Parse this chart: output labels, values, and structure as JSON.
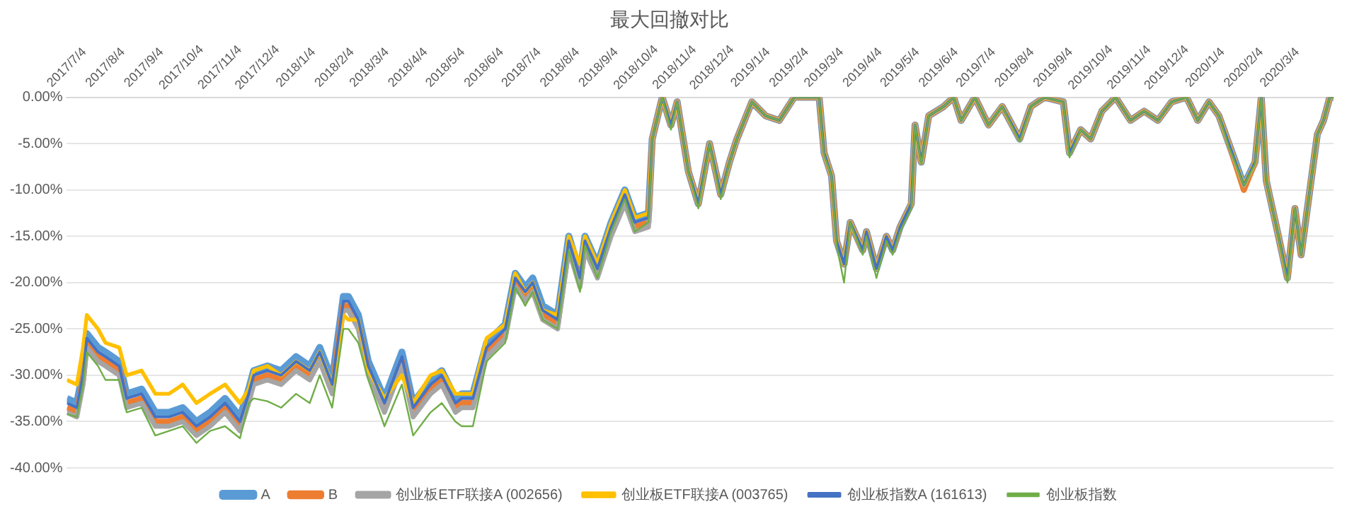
{
  "chart_data": {
    "type": "line",
    "title": "最大回撤对比",
    "x": [
      "2017-07-04",
      "2017-07-12",
      "2017-07-17",
      "2017-07-20",
      "2017-07-29",
      "2017-08-04",
      "2017-08-15",
      "2017-08-21",
      "2017-09-02",
      "2017-09-13",
      "2017-09-24",
      "2017-10-05",
      "2017-10-16",
      "2017-10-27",
      "2017-11-08",
      "2017-11-20",
      "2017-11-27",
      "2017-12-01",
      "2017-12-12",
      "2017-12-23",
      "2018-01-04",
      "2018-01-15",
      "2018-01-23",
      "2018-02-02",
      "2018-02-11",
      "2018-02-15",
      "2018-02-23",
      "2018-03-03",
      "2018-03-16",
      "2018-03-30",
      "2018-04-08",
      "2018-04-22",
      "2018-05-01",
      "2018-05-12",
      "2018-05-17",
      "2018-05-26",
      "2018-06-06",
      "2018-06-21",
      "2018-06-29",
      "2018-07-07",
      "2018-07-13",
      "2018-07-21",
      "2018-08-02",
      "2018-08-11",
      "2018-08-20",
      "2018-08-24",
      "2018-09-03",
      "2018-09-14",
      "2018-09-25",
      "2018-10-03",
      "2018-10-14",
      "2018-10-17",
      "2018-10-25",
      "2018-11-01",
      "2018-11-06",
      "2018-11-15",
      "2018-11-23",
      "2018-12-02",
      "2018-12-11",
      "2018-12-18",
      "2018-12-24",
      "2019-01-05",
      "2019-01-16",
      "2019-01-27",
      "2019-02-08",
      "2019-02-28",
      "2019-03-04",
      "2019-03-10",
      "2019-03-14",
      "2019-03-20",
      "2019-03-25",
      "2019-04-04",
      "2019-04-07",
      "2019-04-15",
      "2019-04-23",
      "2019-04-28",
      "2019-05-04",
      "2019-05-13",
      "2019-05-16",
      "2019-05-21",
      "2019-05-27",
      "2019-06-08",
      "2019-06-16",
      "2019-06-22",
      "2019-07-03",
      "2019-07-14",
      "2019-07-25",
      "2019-08-08",
      "2019-08-17",
      "2019-08-28",
      "2019-09-12",
      "2019-09-17",
      "2019-09-26",
      "2019-10-04",
      "2019-10-13",
      "2019-10-24",
      "2019-11-05",
      "2019-11-16",
      "2019-11-27",
      "2019-12-08",
      "2019-12-20",
      "2019-12-29",
      "2020-01-07",
      "2020-01-15",
      "2020-01-23",
      "2020-02-04",
      "2020-02-13",
      "2020-02-18",
      "2020-02-22",
      "2020-03-02",
      "2020-03-10",
      "2020-03-16",
      "2020-03-21",
      "2020-03-27",
      "2020-04-03",
      "2020-04-08",
      "2020-04-13",
      "2020-04-16"
    ],
    "series": [
      {
        "name": "A",
        "color": "#5b9bd5",
        "values": [
          -32.5,
          -33,
          -29.5,
          -25.5,
          -27,
          -27.5,
          -28.5,
          -32,
          -31.5,
          -34,
          -34,
          -33.5,
          -35,
          -34,
          -32.5,
          -34.5,
          -31.5,
          -29.5,
          -29,
          -29.5,
          -28,
          -29,
          -27,
          -30.5,
          -21.5,
          -21.5,
          -23.5,
          -28.5,
          -32.5,
          -27.5,
          -33,
          -30.5,
          -29.5,
          -32.5,
          -32,
          -32,
          -26.5,
          -24.5,
          -19,
          -20.5,
          -19.5,
          -22.5,
          -23.5,
          -15,
          -19,
          -15,
          -18,
          -13.5,
          -10,
          -13,
          -12.5,
          -4.5,
          0,
          -3,
          -0.5,
          -8,
          -11.5,
          -5,
          -10.5,
          -7,
          -4.5,
          -0.5,
          -2,
          -2.5,
          0,
          0,
          -6,
          -8.5,
          -15.5,
          -18,
          -13.5,
          -16.5,
          -14.5,
          -18.5,
          -15,
          -16.5,
          -14,
          -11.5,
          -3,
          -7,
          -2,
          -1,
          0,
          -2.5,
          0,
          -3,
          -1,
          -4.5,
          -1,
          0,
          -0.5,
          -6,
          -3.5,
          -4.5,
          -1.5,
          0,
          -2.5,
          -1.5,
          -2.5,
          -0.5,
          0,
          -2.5,
          -0.5,
          -2,
          -5,
          -9.5,
          -7,
          0,
          -9,
          -14.5,
          -19.5,
          -12,
          -17,
          -11,
          -4,
          -2.5,
          0,
          0
        ]
      },
      {
        "name": "B",
        "color": "#ed7d31",
        "values": [
          -33.5,
          -34,
          -30.5,
          -26.5,
          -28,
          -28.5,
          -29.5,
          -33,
          -32.5,
          -35,
          -35,
          -34.5,
          -36,
          -35,
          -33.5,
          -35.5,
          -32.5,
          -30.5,
          -30,
          -30.5,
          -29,
          -30,
          -28,
          -31.5,
          -22.5,
          -22.5,
          -24.5,
          -29.5,
          -33.5,
          -28.5,
          -34,
          -31.5,
          -30.5,
          -33.5,
          -33,
          -33,
          -27.5,
          -25.5,
          -20,
          -21.5,
          -20.5,
          -23.5,
          -24.5,
          -16,
          -20,
          -16,
          -19,
          -14.5,
          -11,
          -14,
          -13.5,
          -4.5,
          0,
          -3,
          -0.5,
          -8,
          -11.5,
          -5,
          -10.5,
          -7,
          -4.5,
          -0.5,
          -2,
          -2.5,
          0,
          0,
          -6,
          -8.5,
          -15.5,
          -18,
          -13.5,
          -16.5,
          -14.5,
          -18.5,
          -15,
          -16.5,
          -14,
          -11.5,
          -3,
          -7,
          -2,
          -1,
          0,
          -2.5,
          0,
          -3,
          -1,
          -4.5,
          -1,
          0,
          -0.5,
          -6,
          -3.5,
          -4.5,
          -1.5,
          0,
          -2.5,
          -1.5,
          -2.5,
          -0.5,
          0,
          -2.5,
          -0.5,
          -2,
          -5,
          -10,
          -7,
          0,
          -9,
          -14.5,
          -19.5,
          -12,
          -17,
          -11,
          -4,
          -2.5,
          0,
          0
        ]
      },
      {
        "name": "创业板ETF联接A (002656)",
        "color": "#a5a5a5",
        "values": [
          -34,
          -34.5,
          -31,
          -27,
          -28.5,
          -29,
          -30,
          -33.5,
          -33,
          -35.5,
          -35.5,
          -35,
          -36.5,
          -35.5,
          -34,
          -36,
          -33,
          -31,
          -30.5,
          -31,
          -29.5,
          -30.5,
          -28.5,
          -32,
          -23,
          -23,
          -25,
          -30,
          -34,
          -29,
          -34.5,
          -32,
          -31,
          -34,
          -33.5,
          -33.5,
          -28,
          -26,
          -20.5,
          -22,
          -21,
          -24,
          -25,
          -16.5,
          -20.5,
          -16.5,
          -19.5,
          -15,
          -11.5,
          -14.5,
          -14,
          -4.5,
          0,
          -3,
          -0.5,
          -8,
          -11.5,
          -5,
          -10.5,
          -7,
          -4.5,
          -0.5,
          -2,
          -2.5,
          0,
          0,
          -6,
          -8.5,
          -15.5,
          -18,
          -13.5,
          -16.5,
          -14.5,
          -18.5,
          -15,
          -16.5,
          -14,
          -11.5,
          -3,
          -7,
          -2,
          -1,
          0,
          -2.5,
          0,
          -3,
          -1,
          -4.5,
          -1,
          0,
          -0.5,
          -6,
          -3.5,
          -4.5,
          -1.5,
          0,
          -2.5,
          -1.5,
          -2.5,
          -0.5,
          0,
          -2.5,
          -0.5,
          -2,
          -5,
          -9.5,
          -7,
          0,
          -9,
          -14.5,
          -19.5,
          -12,
          -17,
          -11,
          -4,
          -2.5,
          0,
          0
        ]
      },
      {
        "name": "创业板ETF联接A (003765)",
        "color": "#ffc000",
        "values": [
          -30.5,
          -31,
          -27,
          -23.5,
          -25,
          -26.5,
          -27,
          -30,
          -29.5,
          -32,
          -32,
          -31,
          -33,
          -32,
          -31,
          -33,
          -31.5,
          -29.5,
          -29,
          -30,
          -28.5,
          -29.5,
          -27.5,
          -31,
          -23.5,
          -24,
          -24,
          -29.5,
          -32.5,
          -30,
          -33,
          -30,
          -29.5,
          -32,
          -32,
          -32,
          -26,
          -24.5,
          -19,
          -21,
          -20,
          -23,
          -23.5,
          -15,
          -18,
          -15,
          -18,
          -13.5,
          -10,
          -13,
          -12.5,
          -4.5,
          0,
          -3,
          -0.5,
          -8,
          -11.5,
          -5,
          -10.5,
          -7,
          -4.5,
          -0.5,
          -2,
          -2.5,
          0,
          0,
          -6,
          -8.5,
          -15.5,
          -18,
          -13.5,
          -16.5,
          -14.5,
          -18.5,
          -15,
          -16.5,
          -14,
          -11.5,
          -3,
          -7,
          -2,
          -1,
          0,
          -2.5,
          0,
          -3,
          -1,
          -4.5,
          -1,
          0,
          -0.5,
          -6,
          -3.5,
          -4.5,
          -1.5,
          0,
          -2.5,
          -1.5,
          -2.5,
          -0.5,
          0,
          -2.5,
          -0.5,
          -2,
          -5,
          -9.5,
          -7,
          0,
          -9,
          -14.5,
          -19.5,
          -12,
          -17,
          -11,
          -4,
          -2.5,
          0,
          0
        ]
      },
      {
        "name": "创业板指数A (161613)",
        "color": "#4472c4",
        "values": [
          -33,
          -33.5,
          -30,
          -26,
          -27.5,
          -28,
          -29,
          -32.5,
          -32,
          -34.5,
          -34.5,
          -34,
          -35.5,
          -34.5,
          -33,
          -35,
          -32,
          -30,
          -29.5,
          -30,
          -28.5,
          -29.5,
          -27.5,
          -31,
          -22,
          -22,
          -24,
          -29,
          -33,
          -28,
          -33.5,
          -31,
          -30,
          -33,
          -32.5,
          -32.5,
          -27,
          -25,
          -19.5,
          -21,
          -20,
          -23,
          -24,
          -15.5,
          -19.5,
          -15.5,
          -18.5,
          -14,
          -10.5,
          -13.5,
          -13,
          -4.5,
          0,
          -3,
          -0.5,
          -8,
          -11.5,
          -5,
          -10.5,
          -7,
          -4.5,
          -0.5,
          -2,
          -2.5,
          0,
          0,
          -6,
          -8.5,
          -15.5,
          -18,
          -13.5,
          -16.5,
          -14.5,
          -18.5,
          -15,
          -16.5,
          -14,
          -11.5,
          -3,
          -7,
          -2,
          -1,
          0,
          -2.5,
          0,
          -3,
          -1,
          -4.5,
          -1,
          0,
          -0.5,
          -6,
          -3.5,
          -4.5,
          -1.5,
          0,
          -2.5,
          -1.5,
          -2.5,
          -0.5,
          0,
          -2.5,
          -0.5,
          -2,
          -5,
          -9.5,
          -7,
          0,
          -9,
          -14.5,
          -19.5,
          -12,
          -17,
          -11,
          -4,
          -2.5,
          0,
          0
        ]
      },
      {
        "name": "创业板指数",
        "color": "#70ad47",
        "values": [
          -34.2,
          -34.5,
          -31,
          -27.5,
          -29,
          -30.5,
          -30.5,
          -34,
          -33.5,
          -36.5,
          -36,
          -35.5,
          -37.3,
          -36,
          -35.5,
          -36.8,
          -33,
          -32.5,
          -32.8,
          -33.5,
          -32,
          -33,
          -30,
          -33.5,
          -25,
          -25,
          -26.5,
          -30.5,
          -35.5,
          -31,
          -36.5,
          -34,
          -33,
          -35,
          -35.5,
          -35.5,
          -28.5,
          -26.5,
          -20.5,
          -22.5,
          -21,
          -24,
          -25,
          -16.5,
          -21,
          -16,
          -19.5,
          -14.5,
          -11,
          -14.5,
          -13.5,
          -4.5,
          0,
          -3.5,
          -0.5,
          -8,
          -12,
          -5,
          -11,
          -7,
          -4.5,
          -0.5,
          -2,
          -2.5,
          0,
          0,
          -6.3,
          -8.5,
          -16,
          -20,
          -13.5,
          -17,
          -15,
          -19.5,
          -15.5,
          -17,
          -14.5,
          -12,
          -3,
          -7.2,
          -2,
          -1,
          0,
          -2.5,
          0,
          -3,
          -1,
          -4.8,
          -1,
          0,
          -0.5,
          -6.5,
          -3.5,
          -4.5,
          -1.5,
          0,
          -2.5,
          -1.5,
          -2.5,
          -0.5,
          0,
          -2.5,
          -0.5,
          -2,
          -5.4,
          -9.5,
          -7.2,
          0,
          -9,
          -14.5,
          -20,
          -12,
          -17,
          -11,
          -4,
          -2.5,
          0,
          0
        ]
      }
    ],
    "xlim": [
      "2017-07-04",
      "2020-04-16"
    ],
    "xticks": [
      {
        "value": "2017-07-04",
        "label": "2017/7/4"
      },
      {
        "value": "2017-08-04",
        "label": "2017/8/4"
      },
      {
        "value": "2017-09-04",
        "label": "2017/9/4"
      },
      {
        "value": "2017-10-04",
        "label": "2017/10/4"
      },
      {
        "value": "2017-11-04",
        "label": "2017/11/4"
      },
      {
        "value": "2017-12-04",
        "label": "2017/12/4"
      },
      {
        "value": "2018-01-04",
        "label": "2018/1/4"
      },
      {
        "value": "2018-02-04",
        "label": "2018/2/4"
      },
      {
        "value": "2018-03-04",
        "label": "2018/3/4"
      },
      {
        "value": "2018-04-04",
        "label": "2018/4/4"
      },
      {
        "value": "2018-05-04",
        "label": "2018/5/4"
      },
      {
        "value": "2018-06-04",
        "label": "2018/6/4"
      },
      {
        "value": "2018-07-04",
        "label": "2018/7/4"
      },
      {
        "value": "2018-08-04",
        "label": "2018/8/4"
      },
      {
        "value": "2018-09-04",
        "label": "2018/9/4"
      },
      {
        "value": "2018-10-04",
        "label": "2018/10/4"
      },
      {
        "value": "2018-11-04",
        "label": "2018/11/4"
      },
      {
        "value": "2018-12-04",
        "label": "2018/12/4"
      },
      {
        "value": "2019-01-04",
        "label": "2019/1/4"
      },
      {
        "value": "2019-02-04",
        "label": "2019/2/4"
      },
      {
        "value": "2019-03-04",
        "label": "2019/3/4"
      },
      {
        "value": "2019-04-04",
        "label": "2019/4/4"
      },
      {
        "value": "2019-05-04",
        "label": "2019/5/4"
      },
      {
        "value": "2019-06-04",
        "label": "2019/6/4"
      },
      {
        "value": "2019-07-04",
        "label": "2019/7/4"
      },
      {
        "value": "2019-08-04",
        "label": "2019/8/4"
      },
      {
        "value": "2019-09-04",
        "label": "2019/9/4"
      },
      {
        "value": "2019-10-04",
        "label": "2019/10/4"
      },
      {
        "value": "2019-11-04",
        "label": "2019/11/4"
      },
      {
        "value": "2019-12-04",
        "label": "2019/12/4"
      },
      {
        "value": "2020-01-04",
        "label": "2020/1/4"
      },
      {
        "value": "2020-02-04",
        "label": "2020/2/4"
      },
      {
        "value": "2020-03-04",
        "label": "2020/3/4"
      }
    ],
    "ylim": [
      -40,
      0
    ],
    "yticks": [
      {
        "value": 0,
        "label": "0.00%"
      },
      {
        "value": -5,
        "label": "-5.00%"
      },
      {
        "value": -10,
        "label": "-10.00%"
      },
      {
        "value": -15,
        "label": "-15.00%"
      },
      {
        "value": -20,
        "label": "-20.00%"
      },
      {
        "value": -25,
        "label": "-25.00%"
      },
      {
        "value": -30,
        "label": "-30.00%"
      },
      {
        "value": -35,
        "label": "-35.00%"
      },
      {
        "value": -40,
        "label": "-40.00%"
      }
    ],
    "grid": "y",
    "legend": "bottom",
    "marker": "none",
    "line_style": "solid"
  }
}
